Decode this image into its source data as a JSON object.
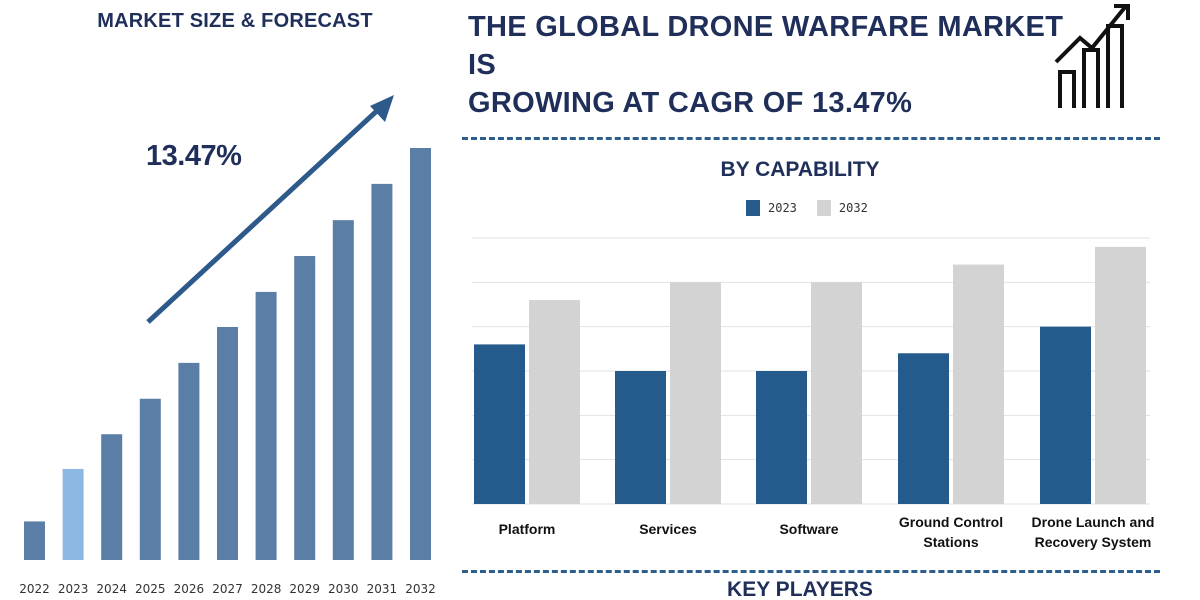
{
  "left": {
    "title": "MARKET SIZE & FORECAST",
    "cagr_label": "13.47%"
  },
  "headline": {
    "line1": "THE GLOBAL DRONE WARFARE MARKET IS",
    "line2": "GROWING AT CAGR OF 13.47%"
  },
  "capability": {
    "title": "BY CAPABILITY"
  },
  "key_players": "KEY PLAYERS",
  "colors": {
    "navy": "#1f2f5a",
    "bar_main": "#5b7ea6",
    "bar_light": "#8db8e3",
    "series_2023": "#245a8c",
    "series_2032": "#d3d3d3",
    "arrow": "#2d5a8a"
  },
  "chart_data": [
    {
      "type": "bar",
      "title": "MARKET SIZE & FORECAST",
      "categories": [
        "2022",
        "2023",
        "2024",
        "2025",
        "2026",
        "2027",
        "2028",
        "2029",
        "2030",
        "2031",
        "2032"
      ],
      "values": [
        1.0,
        2.36,
        3.26,
        4.18,
        5.11,
        6.04,
        6.95,
        7.88,
        8.81,
        9.75,
        10.68
      ],
      "highlight_index": 1,
      "annotation": "13.47%",
      "xlabel": "",
      "ylabel": "",
      "grid": false
    },
    {
      "type": "bar",
      "title": "BY CAPABILITY",
      "categories": [
        "Platform",
        "Services",
        "Software",
        "Ground Control Stations",
        "Drone Launch and Recovery System"
      ],
      "category_lines": [
        [
          "Platform"
        ],
        [
          "Services"
        ],
        [
          "Software"
        ],
        [
          "Ground Control",
          "Stations"
        ],
        [
          "Drone Launch and",
          "Recovery System"
        ]
      ],
      "series": [
        {
          "name": "2023",
          "values": [
            3.6,
            3.0,
            3.0,
            3.4,
            4.0
          ]
        },
        {
          "name": "2032",
          "values": [
            4.6,
            5.0,
            5.0,
            5.4,
            5.8
          ]
        }
      ],
      "ylim": [
        0,
        6
      ],
      "grid": true,
      "legend": "top-center"
    }
  ]
}
